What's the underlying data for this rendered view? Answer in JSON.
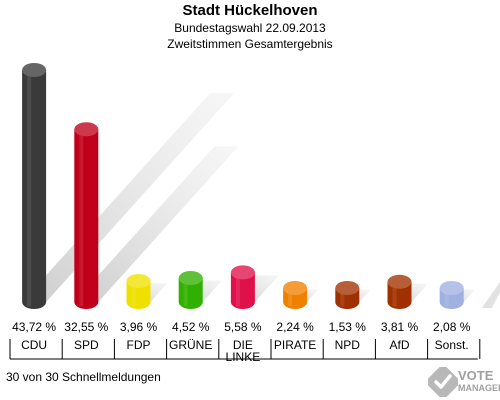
{
  "header": {
    "title": "Stadt Hückelhoven",
    "subtitle": "Bundestagswahl 22.09.2013",
    "subtitle2": "Zweitstimmen Gesamtergebnis"
  },
  "footer": {
    "text": "30 von 30 Schnellmeldungen"
  },
  "logo": {
    "line1": "VOTE",
    "line2": "MANAGER"
  },
  "chart_data": {
    "type": "bar",
    "categories": [
      "CDU",
      "SPD",
      "FDP",
      "GRÜNE",
      "DIE LINKE",
      "PIRATE",
      "NPD",
      "AfD",
      "Sonst."
    ],
    "category_lines": [
      [
        "CDU"
      ],
      [
        "SPD"
      ],
      [
        "FDP"
      ],
      [
        "GRÜNE"
      ],
      [
        "DIE",
        "LINKE"
      ],
      [
        "PIRATE"
      ],
      [
        "NPD"
      ],
      [
        "AfD"
      ],
      [
        "Sonst."
      ]
    ],
    "values": [
      43.72,
      32.55,
      3.96,
      4.52,
      5.58,
      2.24,
      1.53,
      3.81,
      2.08
    ],
    "value_labels": [
      "43,72 %",
      "32,55 %",
      "3,96 %",
      "4,52 %",
      "5,58 %",
      "2,24 %",
      "1,53 %",
      "3,81 %",
      "2,08 %"
    ],
    "colors": [
      "#3a3a3a",
      "#c0001a",
      "#f0e000",
      "#30b000",
      "#e0104a",
      "#f08000",
      "#a03000",
      "#a03000",
      "#a0b0e0"
    ],
    "title": "Stadt Hückelhoven",
    "xlabel": "",
    "ylabel": "",
    "grid": false,
    "legend": "none"
  }
}
